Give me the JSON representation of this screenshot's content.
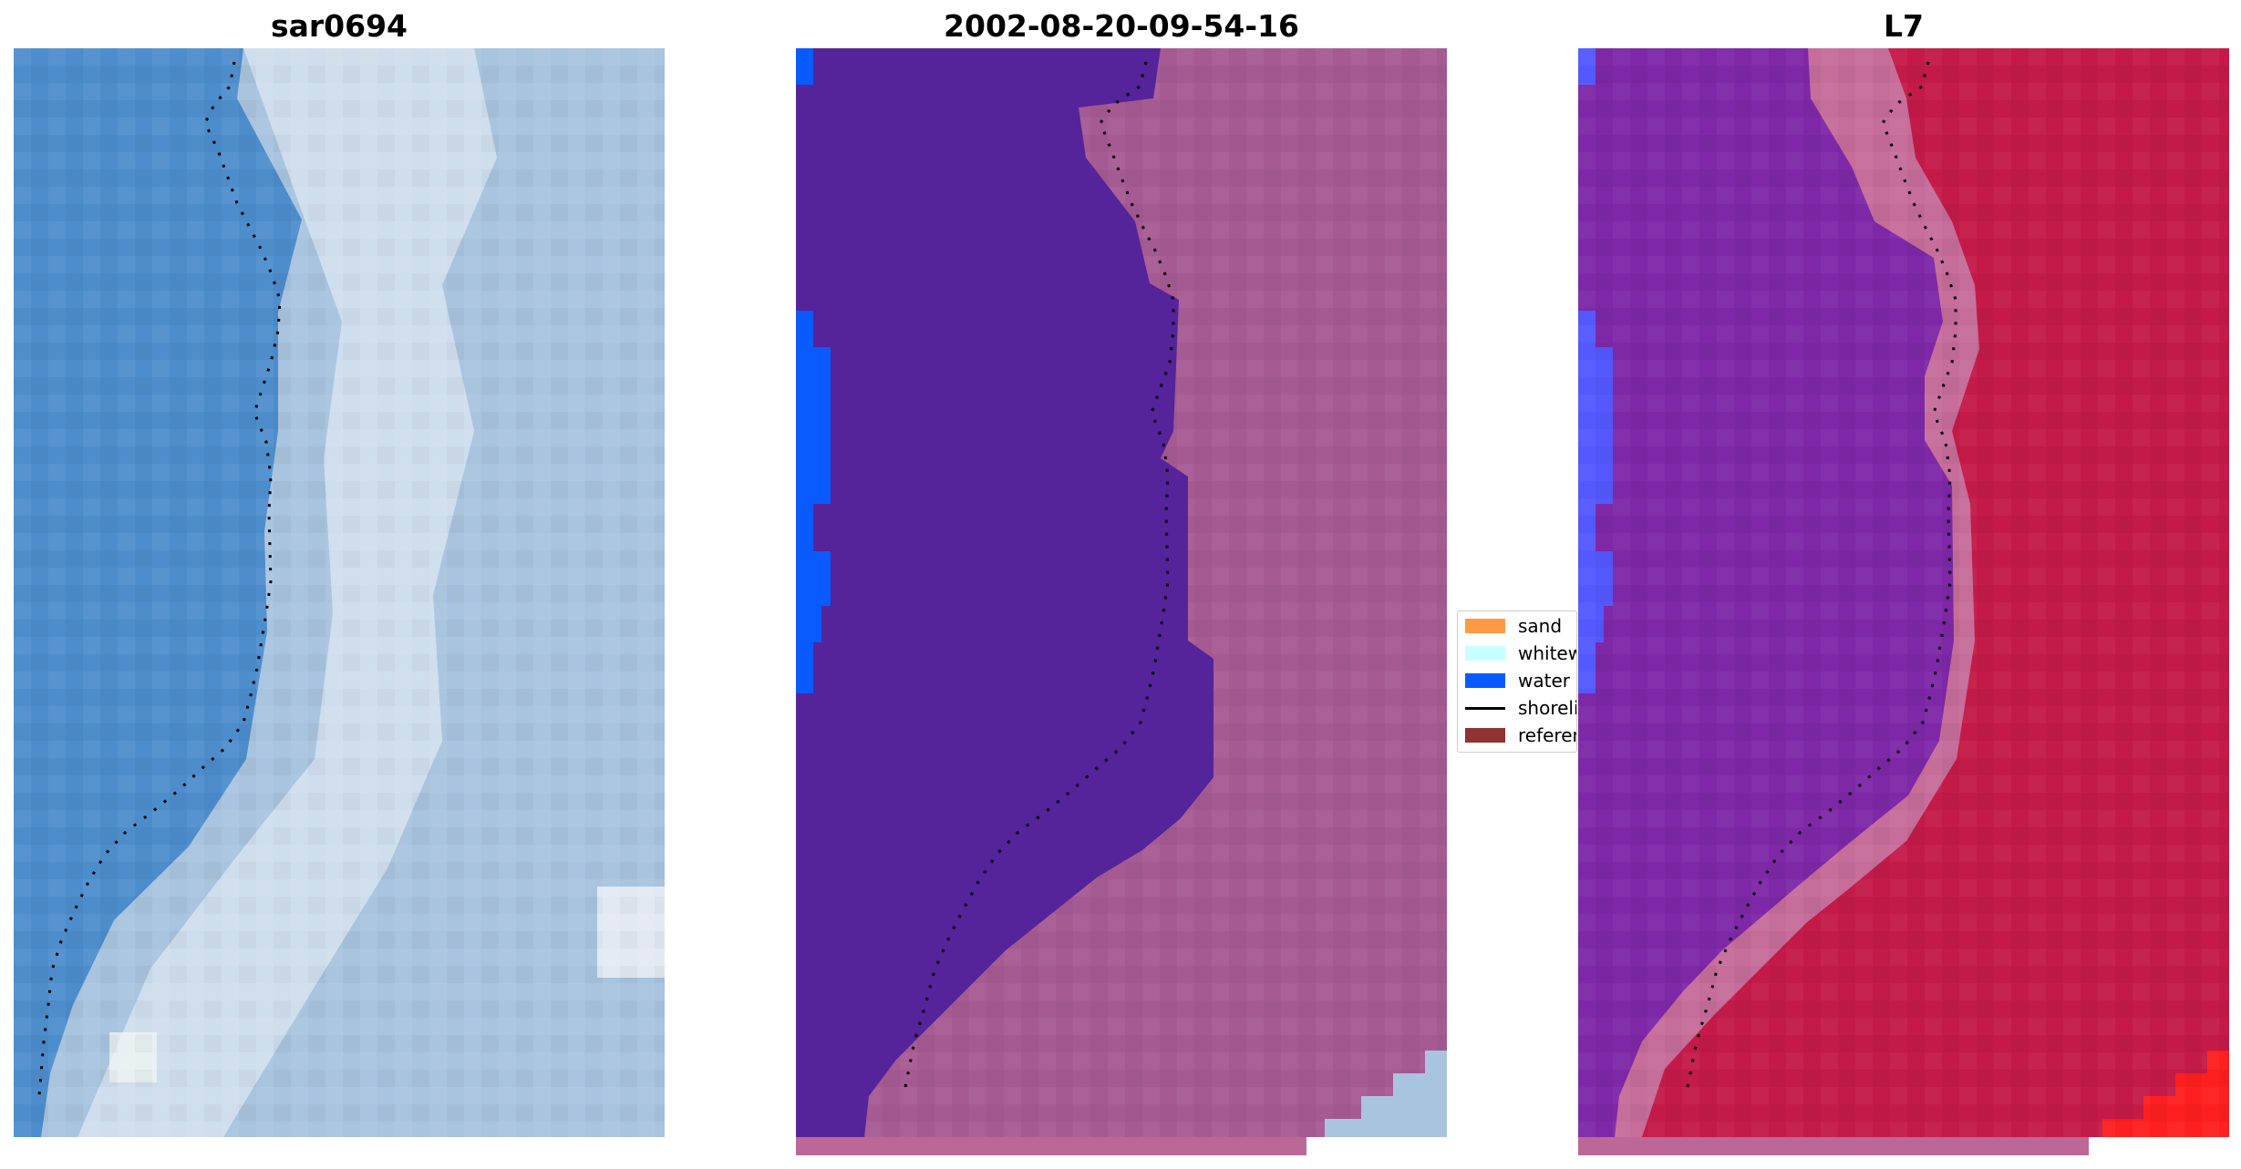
{
  "panels": [
    {
      "title": "sar0694"
    },
    {
      "title": "2002-08-20-09-54-16"
    },
    {
      "title": "L7"
    }
  ],
  "legend": {
    "items": [
      {
        "label": "sand",
        "color": "#ff9a44"
      },
      {
        "label": "whitewater",
        "color": "#c8ffff"
      },
      {
        "label": "water",
        "color": "#0a5bff"
      },
      {
        "label": "shoreline",
        "color": "#000000"
      },
      {
        "label": "reference",
        "color": "#8f3232"
      }
    ]
  },
  "colors": {
    "rgb_water": "#4d8dcc",
    "rgb_shore": "#dde6ef",
    "rgb_land": "#a9c4de",
    "class_water": "#55239a",
    "class_land": "#a65a92",
    "class_water_edge": "#0a5bff",
    "class_bottom_right": "#a9c4de",
    "mndwi_water": "#7e28a8",
    "mndwi_shore": "#c66d9a",
    "mndwi_land": "#c41a48",
    "mndwi_corner": "#ff1f1f",
    "strip": "#bc6896",
    "shoreline": "#000000"
  }
}
